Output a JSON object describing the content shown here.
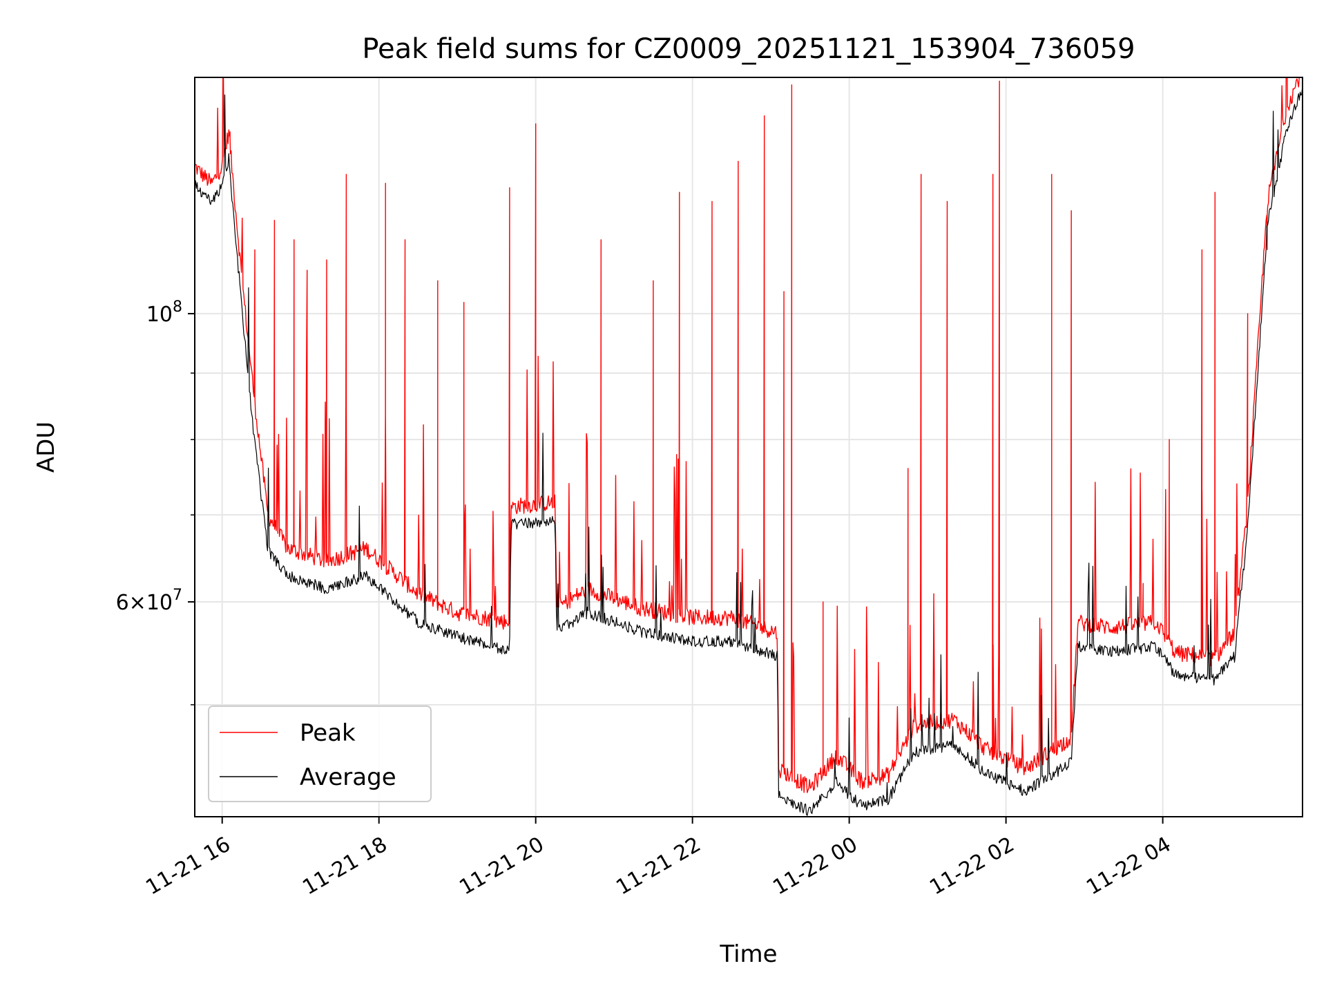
{
  "chart_data": {
    "type": "line",
    "title": "Peak field sums for CZ0009_20251121_153904_736059",
    "xlabel": "Time",
    "ylabel": "ADU",
    "y_scale": "log",
    "xlim": [
      "2025-11-21 15:39",
      "2025-11-22 05:47"
    ],
    "ylim": [
      41000000,
      152000000
    ],
    "grid": true,
    "legend_position": "lower-left",
    "x_ticks": [
      "11-21 16",
      "11-21 18",
      "11-21 20",
      "11-21 22",
      "11-22 00",
      "11-22 02",
      "11-22 04"
    ],
    "y_major_ticks": [
      {
        "value": 100000000,
        "base": "10",
        "exp": "8"
      },
      {
        "value": 60000000,
        "mantissa": "6",
        "base": "10",
        "exp": "7"
      }
    ],
    "y_minor_ticks": [
      50000000,
      70000000,
      80000000,
      90000000
    ],
    "series": [
      {
        "name": "Peak",
        "color": "#ff0000",
        "baseline": [
          [
            "2025-11-21 15:39",
            128000000
          ],
          [
            "2025-11-21 15:45",
            126000000
          ],
          [
            "2025-11-21 15:52",
            124000000
          ],
          [
            "2025-11-21 16:00",
            128000000
          ],
          [
            "2025-11-21 16:05",
            136000000
          ],
          [
            "2025-11-21 16:15",
            105000000
          ],
          [
            "2025-11-21 16:25",
            84000000
          ],
          [
            "2025-11-21 16:35",
            69000000
          ],
          [
            "2025-11-21 16:50",
            65000000
          ],
          [
            "2025-11-21 17:20",
            63500000
          ],
          [
            "2025-11-21 17:50",
            65000000
          ],
          [
            "2025-11-21 18:30",
            60000000
          ],
          [
            "2025-11-21 19:00",
            58000000
          ],
          [
            "2025-11-21 19:40",
            57000000
          ],
          [
            "2025-11-21 19:41",
            70000000
          ],
          [
            "2025-11-21 20:15",
            70500000
          ],
          [
            "2025-11-21 20:16",
            58500000
          ],
          [
            "2025-11-21 20:40",
            60500000
          ],
          [
            "2025-11-21 21:20",
            58500000
          ],
          [
            "2025-11-21 22:00",
            57500000
          ],
          [
            "2025-11-21 22:30",
            57500000
          ],
          [
            "2025-11-21 23:05",
            56000000
          ],
          [
            "2025-11-21 23:06",
            44000000
          ],
          [
            "2025-11-21 23:30",
            42500000
          ],
          [
            "2025-11-21 23:50",
            45000000
          ],
          [
            "2025-11-22 00:10",
            43000000
          ],
          [
            "2025-11-22 00:30",
            43500000
          ],
          [
            "2025-11-22 00:50",
            47500000
          ],
          [
            "2025-11-22 01:20",
            48000000
          ],
          [
            "2025-11-22 01:45",
            45500000
          ],
          [
            "2025-11-22 02:15",
            44000000
          ],
          [
            "2025-11-22 02:50",
            46500000
          ],
          [
            "2025-11-22 02:55",
            57000000
          ],
          [
            "2025-11-22 03:20",
            56500000
          ],
          [
            "2025-11-22 03:55",
            57000000
          ],
          [
            "2025-11-22 04:10",
            54000000
          ],
          [
            "2025-11-22 04:40",
            53500000
          ],
          [
            "2025-11-22 04:55",
            56000000
          ],
          [
            "2025-11-22 05:05",
            70000000
          ],
          [
            "2025-11-22 05:20",
            120000000
          ],
          [
            "2025-11-22 05:35",
            142000000
          ],
          [
            "2025-11-22 05:47",
            152000000
          ]
        ],
        "spikes": [
          [
            "2025-11-21 16:06",
            138000000
          ],
          [
            "2025-11-21 16:25",
            112000000
          ],
          [
            "2025-11-21 16:40",
            118000000
          ],
          [
            "2025-11-21 16:55",
            114000000
          ],
          [
            "2025-11-21 17:05",
            108000000
          ],
          [
            "2025-11-21 17:20",
            110000000
          ],
          [
            "2025-11-21 17:35",
            128000000
          ],
          [
            "2025-11-21 18:05",
            126000000
          ],
          [
            "2025-11-21 18:20",
            114000000
          ],
          [
            "2025-11-21 18:45",
            106000000
          ],
          [
            "2025-11-21 19:05",
            102000000
          ],
          [
            "2025-11-21 19:40",
            125000000
          ],
          [
            "2025-11-21 20:00",
            140000000
          ],
          [
            "2025-11-21 20:50",
            114000000
          ],
          [
            "2025-11-21 21:30",
            106000000
          ],
          [
            "2025-11-21 21:50",
            124000000
          ],
          [
            "2025-11-21 22:15",
            122000000
          ],
          [
            "2025-11-21 22:35",
            131000000
          ],
          [
            "2025-11-21 22:55",
            142000000
          ],
          [
            "2025-11-21 23:10",
            104000000
          ],
          [
            "2025-11-21 23:16",
            150000000
          ],
          [
            "2025-11-21 23:40",
            60000000
          ],
          [
            "2025-11-22 00:45",
            76000000
          ],
          [
            "2025-11-22 00:55",
            128000000
          ],
          [
            "2025-11-22 01:15",
            122000000
          ],
          [
            "2025-11-22 01:50",
            128000000
          ],
          [
            "2025-11-22 01:55",
            151000000
          ],
          [
            "2025-11-22 02:35",
            128000000
          ],
          [
            "2025-11-22 02:50",
            120000000
          ],
          [
            "2025-11-22 03:45",
            62000000
          ],
          [
            "2025-11-22 04:05",
            80000000
          ],
          [
            "2025-11-22 04:30",
            112000000
          ],
          [
            "2025-11-22 04:40",
            124000000
          ],
          [
            "2025-11-22 05:05",
            100000000
          ],
          [
            "2025-11-22 05:20",
            112000000
          ]
        ]
      },
      {
        "name": "Average",
        "color": "#000000",
        "baseline": [
          [
            "2025-11-21 15:39",
            127000000
          ],
          [
            "2025-11-21 15:45",
            125000000
          ],
          [
            "2025-11-21 15:52",
            123000000
          ],
          [
            "2025-11-21 16:00",
            127000000
          ],
          [
            "2025-11-21 16:05",
            133000000
          ],
          [
            "2025-11-21 16:15",
            102000000
          ],
          [
            "2025-11-21 16:25",
            80000000
          ],
          [
            "2025-11-21 16:35",
            66500000
          ],
          [
            "2025-11-21 16:50",
            63500000
          ],
          [
            "2025-11-21 17:20",
            62000000
          ],
          [
            "2025-11-21 17:50",
            63500000
          ],
          [
            "2025-11-21 18:30",
            58500000
          ],
          [
            "2025-11-21 19:00",
            57000000
          ],
          [
            "2025-11-21 19:40",
            55500000
          ],
          [
            "2025-11-21 19:41",
            69500000
          ],
          [
            "2025-11-21 20:15",
            70000000
          ],
          [
            "2025-11-21 20:16",
            57500000
          ],
          [
            "2025-11-21 20:40",
            59500000
          ],
          [
            "2025-11-21 21:20",
            57500000
          ],
          [
            "2025-11-21 22:00",
            56500000
          ],
          [
            "2025-11-21 22:30",
            56500000
          ],
          [
            "2025-11-21 23:05",
            55000000
          ],
          [
            "2025-11-21 23:06",
            43000000
          ],
          [
            "2025-11-21 23:30",
            41800000
          ],
          [
            "2025-11-21 23:50",
            44000000
          ],
          [
            "2025-11-22 00:10",
            42200000
          ],
          [
            "2025-11-22 00:30",
            42700000
          ],
          [
            "2025-11-22 00:50",
            46500000
          ],
          [
            "2025-11-22 01:20",
            47000000
          ],
          [
            "2025-11-22 01:45",
            44700000
          ],
          [
            "2025-11-22 02:15",
            43300000
          ],
          [
            "2025-11-22 02:50",
            45600000
          ],
          [
            "2025-11-22 02:55",
            56000000
          ],
          [
            "2025-11-22 03:20",
            55500000
          ],
          [
            "2025-11-22 03:55",
            56000000
          ],
          [
            "2025-11-22 04:10",
            53200000
          ],
          [
            "2025-11-22 04:40",
            52800000
          ],
          [
            "2025-11-22 04:55",
            55000000
          ],
          [
            "2025-11-22 05:05",
            69000000
          ],
          [
            "2025-11-22 05:20",
            118000000
          ],
          [
            "2025-11-22 05:35",
            140000000
          ],
          [
            "2025-11-22 05:47",
            151000000
          ]
        ]
      }
    ]
  }
}
